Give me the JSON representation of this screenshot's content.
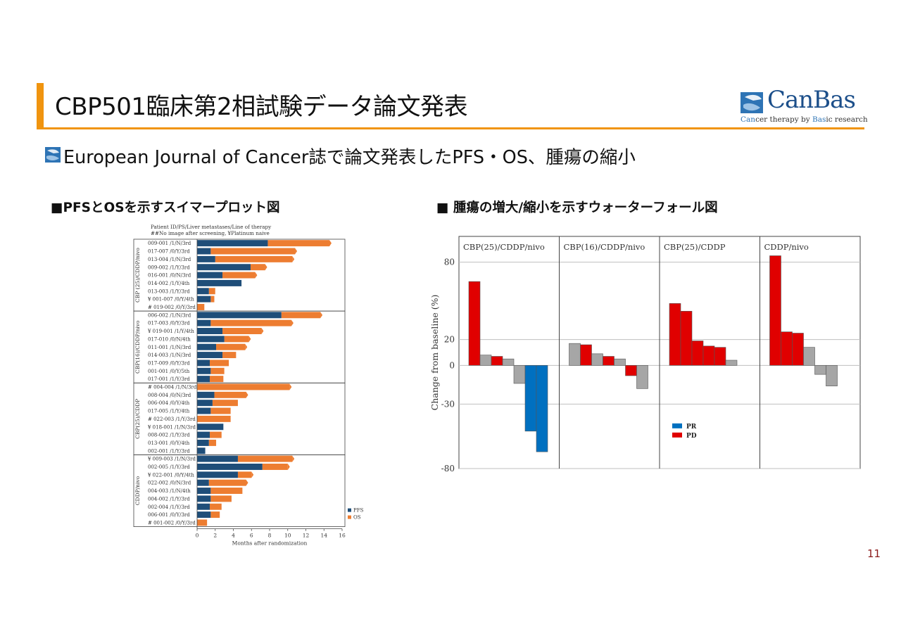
{
  "slide": {
    "title": "CBP501臨床第2相試験データ論文発表",
    "subtitle": "European Journal of Cancer誌で論文発表したPFS・OS、腫瘍の縮小",
    "left_heading": "■PFSとOSを示すスイマープロット図",
    "right_heading": "■ 腫瘍の増大/縮小を示すウォーターフォール図",
    "page_number": "11",
    "logo": {
      "name": "CanBas",
      "sub_pre": "Can",
      "sub_mid1": "cer therapy by ",
      "sub_bas": "Bas",
      "sub_post": "ic research"
    }
  },
  "colors": {
    "accent": "#f0940f",
    "pfs": "#1f4e79",
    "os": "#ed7d31",
    "pr": "#0070c0",
    "pd": "#e00000",
    "sd": "#a6a6a6"
  },
  "chart_data": [
    {
      "type": "bar",
      "subtype": "swimmer",
      "header_line1": "Patient ID/PS/Liver metastases/Line of therapy",
      "header_line2": "##No image after screening, ¥Platinum naive",
      "xlabel": "Months after randomization",
      "xlim": [
        0,
        16
      ],
      "xticks": [
        0,
        2,
        4,
        6,
        8,
        10,
        12,
        14,
        16
      ],
      "legend": [
        "PFS",
        "OS"
      ],
      "legend_position": "bottom-right",
      "groups": [
        {
          "name": "CBP (25)/CDDP/nivo",
          "rows": [
            {
              "label": "009-001 /1/N/3rd",
              "pfs": 7.8,
              "os": 14.6
            },
            {
              "label": "017-007 /0/Y/3rd",
              "pfs": 1.5,
              "os": 10.8
            },
            {
              "label": "013-004 /1/N/3rd",
              "pfs": 2.0,
              "os": 10.5
            },
            {
              "label": "009-002 /1/Y/3rd",
              "pfs": 5.9,
              "os": 7.5
            },
            {
              "label": "016-001 /0/N/3rd",
              "pfs": 2.8,
              "os": 6.4
            },
            {
              "label": "014-002 /1/Y/4th",
              "pfs": 4.9,
              "os": 4.9
            },
            {
              "label": "013-003 /1/Y/3rd",
              "pfs": 1.3,
              "os": 2.0
            },
            {
              "label": "¥ 001-007 /0/Y/4th",
              "pfs": 1.5,
              "os": 1.9
            },
            {
              "label": "# 019-002 /0/Y/3rd",
              "pfs": 0,
              "os": 0.8
            }
          ]
        },
        {
          "name": "CBP(16)/CDDP/nivo",
          "rows": [
            {
              "label": "006-002 /1/N/3rd",
              "pfs": 9.3,
              "os": 13.6
            },
            {
              "label": "017-003 /0/Y/3rd",
              "pfs": 1.5,
              "os": 10.4
            },
            {
              "label": "¥ 019-001 /1/Y/4th",
              "pfs": 2.8,
              "os": 7.1
            },
            {
              "label": "017-010 /0/N/4th",
              "pfs": 3.0,
              "os": 5.7
            },
            {
              "label": "011-001 /1/N/3rd",
              "pfs": 2.1,
              "os": 5.3
            },
            {
              "label": "014-003 /1/N/3rd",
              "pfs": 2.8,
              "os": 4.3
            },
            {
              "label": "017-009 /0/Y/3rd",
              "pfs": 1.4,
              "os": 3.5
            },
            {
              "label": "001-001 /0/Y/5th",
              "pfs": 1.5,
              "os": 3.0
            },
            {
              "label": "017-001 /1/Y/3rd",
              "pfs": 1.4,
              "os": 2.9
            }
          ]
        },
        {
          "name": "CBP(25)/CDDP",
          "rows": [
            {
              "label": "# 004-004 /1/N/3rd",
              "pfs": 0,
              "os": 10.2
            },
            {
              "label": "008-004 /0/N/3rd",
              "pfs": 1.9,
              "os": 5.4
            },
            {
              "label": "006-004 /0/Y/4th",
              "pfs": 1.7,
              "os": 4.5
            },
            {
              "label": "017-005 /1/Y/4th",
              "pfs": 1.5,
              "os": 3.7
            },
            {
              "label": "# 022-003 /1/Y/3rd",
              "pfs": 0,
              "os": 3.7
            },
            {
              "label": "¥ 018-001 /1/N/3rd",
              "pfs": 2.9,
              "os": 2.9
            },
            {
              "label": "008-002 /1/Y/3rd",
              "pfs": 1.4,
              "os": 2.7
            },
            {
              "label": "013-001 /0/Y/4th",
              "pfs": 1.3,
              "os": 2.1
            },
            {
              "label": "002-001 /1/Y/3rd",
              "pfs": 0.9,
              "os": 0.9
            }
          ]
        },
        {
          "name": "CDDP/nivo",
          "rows": [
            {
              "label": "¥ 009-003 /1/N/3rd",
              "pfs": 4.5,
              "os": 10.5
            },
            {
              "label": "002-005 /1/Y/3rd",
              "pfs": 7.2,
              "os": 10.0
            },
            {
              "label": "¥ 022-001 /0/Y/4th",
              "pfs": 4.5,
              "os": 6.0
            },
            {
              "label": "022-002 /0/N/3rd",
              "pfs": 1.3,
              "os": 5.4
            },
            {
              "label": "004-003 /1/N/4th",
              "pfs": 1.5,
              "os": 5.0
            },
            {
              "label": "004-002 /1/Y/3rd",
              "pfs": 1.5,
              "os": 3.8
            },
            {
              "label": "002-004 /1/Y/3rd",
              "pfs": 1.4,
              "os": 2.7
            },
            {
              "label": "006-001 /0/Y/3rd",
              "pfs": 1.5,
              "os": 2.5
            },
            {
              "label": "# 001-002 /0/Y/3rd",
              "pfs": 0,
              "os": 1.1
            }
          ]
        }
      ]
    },
    {
      "type": "bar",
      "subtype": "waterfall",
      "ylabel": "Change from baseline (%)",
      "ylim": [
        -80,
        100
      ],
      "yticks": [
        80,
        20,
        0,
        -30,
        -80
      ],
      "grid": true,
      "legend": [
        "PR",
        "PD"
      ],
      "legend_position": "bottom-left of third panel",
      "panels": [
        {
          "name": "CBP(25)/CDDP/nivo",
          "bars": [
            {
              "value": 65,
              "class": "PD"
            },
            {
              "value": 8,
              "class": "SD"
            },
            {
              "value": 7,
              "class": "PD"
            },
            {
              "value": 5,
              "class": "SD"
            },
            {
              "value": -14,
              "class": "SD"
            },
            {
              "value": -51,
              "class": "PR"
            },
            {
              "value": -67,
              "class": "PR"
            }
          ]
        },
        {
          "name": "CBP(16)/CDDP/nivo",
          "bars": [
            {
              "value": 17,
              "class": "SD"
            },
            {
              "value": 16,
              "class": "PD"
            },
            {
              "value": 9,
              "class": "SD"
            },
            {
              "value": 7,
              "class": "PD"
            },
            {
              "value": 5,
              "class": "SD"
            },
            {
              "value": -8,
              "class": "PD"
            },
            {
              "value": -18,
              "class": "SD"
            }
          ]
        },
        {
          "name": "CBP(25)/CDDP",
          "bars": [
            {
              "value": 48,
              "class": "PD"
            },
            {
              "value": 42,
              "class": "PD"
            },
            {
              "value": 19,
              "class": "PD"
            },
            {
              "value": 15,
              "class": "PD"
            },
            {
              "value": 14,
              "class": "PD"
            },
            {
              "value": 4,
              "class": "SD"
            }
          ]
        },
        {
          "name": "CDDP/nivo",
          "bars": [
            {
              "value": 85,
              "class": "PD"
            },
            {
              "value": 26,
              "class": "PD"
            },
            {
              "value": 25,
              "class": "PD"
            },
            {
              "value": 14,
              "class": "SD"
            },
            {
              "value": -7,
              "class": "SD"
            },
            {
              "value": -16,
              "class": "SD"
            }
          ]
        }
      ]
    }
  ]
}
